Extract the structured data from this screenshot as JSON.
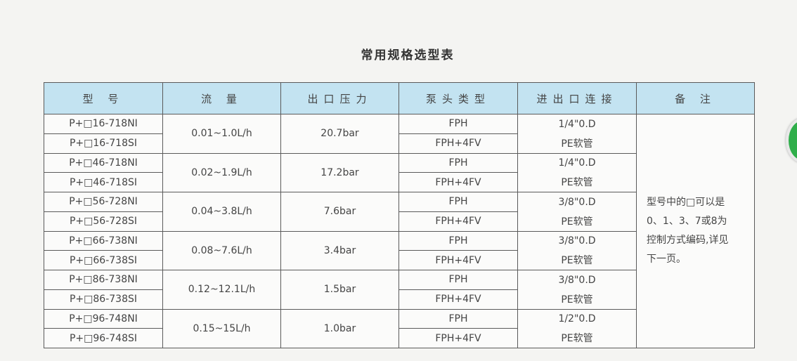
{
  "title": "常用规格选型表",
  "headers": [
    "型 号",
    "流 量",
    "出口压力",
    "泵头类型",
    "进出口连接",
    "备 注"
  ],
  "groups": [
    {
      "models": [
        "P+□16-718NI",
        "P+□16-718SI"
      ],
      "flow": "0.01~1.0L/h",
      "pressure": "20.7bar",
      "heads": [
        "FPH",
        "FPH+4FV"
      ],
      "connection": [
        "1/4\"0.D",
        "PE软管"
      ]
    },
    {
      "models": [
        "P+□46-718NI",
        "P+□46-718SI"
      ],
      "flow": "0.02~1.9L/h",
      "pressure": "17.2bar",
      "heads": [
        "FPH",
        "FPH+4FV"
      ],
      "connection": [
        "1/4\"0.D",
        "PE软管"
      ]
    },
    {
      "models": [
        "P+□56-728NI",
        "P+□56-728SI"
      ],
      "flow": "0.04~3.8L/h",
      "pressure": "7.6bar",
      "heads": [
        "FPH",
        "FPH+4FV"
      ],
      "connection": [
        "3/8\"0.D",
        "PE软管"
      ]
    },
    {
      "models": [
        "P+□66-738NI",
        "P+□66-738SI"
      ],
      "flow": "0.08~7.6L/h",
      "pressure": "3.4bar",
      "heads": [
        "FPH",
        "FPH+4FV"
      ],
      "connection": [
        "3/8\"0.D",
        "PE软管"
      ]
    },
    {
      "models": [
        "P+□86-738NI",
        "P+□86-738SI"
      ],
      "flow": "0.12~12.1L/h",
      "pressure": "1.5bar",
      "heads": [
        "FPH",
        "FPH+4FV"
      ],
      "connection": [
        "3/8\"0.D",
        "PE软管"
      ]
    },
    {
      "models": [
        "P+□96-748NI",
        "P+□96-748SI"
      ],
      "flow": "0.15~15L/h",
      "pressure": "1.0bar",
      "heads": [
        "FPH",
        "FPH+4FV"
      ],
      "connection": [
        "1/2\"0.D",
        "PE软管"
      ]
    }
  ],
  "note": [
    "型号中的□可以是",
    "0、1、3、7或8为",
    "控制方式编码,详见",
    "下一页。"
  ],
  "colors": {
    "header_bg": "#c3e3f1",
    "border": "#5a5a5a"
  }
}
